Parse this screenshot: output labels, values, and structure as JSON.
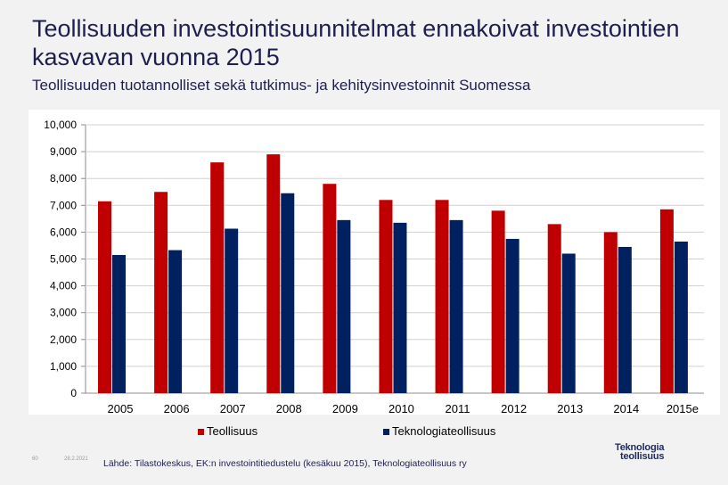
{
  "header": {
    "title": "Teollisuuden investointisuunnitelmat ennakoivat investointien kasvavan vuonna 2015",
    "subtitle": "Teollisuuden tuotannolliset sekä tutkimus- ja kehitysinvestoinnit Suomessa"
  },
  "footer": {
    "page_number": "60",
    "date": "28.2.2021",
    "source": "Lähde: Tilastokeskus, EK:n investointitiedustelu (kesäkuu 2015), Teknologiateollisuus ry",
    "logo_line1": "Teknologia",
    "logo_line2": "teollisuus"
  },
  "colors": {
    "series1": "#c00000",
    "series2": "#002060",
    "title": "#1f1f4f"
  },
  "chart_data": {
    "type": "bar",
    "title": "",
    "xlabel": "",
    "ylabel": "",
    "ylim": [
      0,
      10000
    ],
    "yticks": [
      0,
      1000,
      2000,
      3000,
      4000,
      5000,
      6000,
      7000,
      8000,
      9000,
      10000
    ],
    "ytick_labels": [
      "0",
      "1,000",
      "2,000",
      "3,000",
      "4,000",
      "5,000",
      "6,000",
      "7,000",
      "8,000",
      "9,000",
      "10,000"
    ],
    "categories": [
      "2005",
      "2006",
      "2007",
      "2008",
      "2009",
      "2010",
      "2011",
      "2012",
      "2013",
      "2014",
      "2015e"
    ],
    "series": [
      {
        "name": "Teollisuus",
        "values": [
          7150,
          7500,
          8600,
          8900,
          7800,
          7200,
          7200,
          6800,
          6300,
          6000,
          6850
        ]
      },
      {
        "name": "Teknologiateollisuus",
        "values": [
          5150,
          5330,
          6130,
          7450,
          6450,
          6350,
          6450,
          5750,
          5200,
          5450,
          5650
        ]
      }
    ],
    "legend": "bottom",
    "grid": true
  }
}
